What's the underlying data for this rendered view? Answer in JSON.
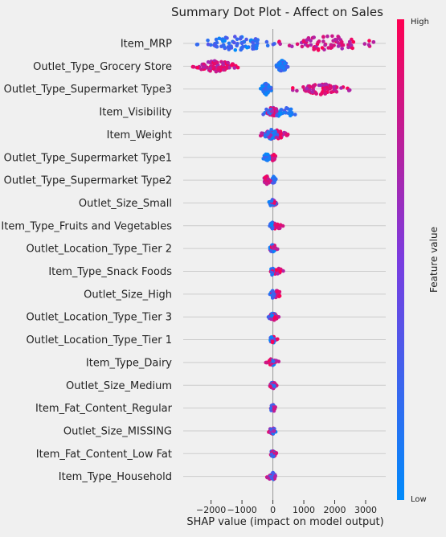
{
  "chart_data": {
    "type": "scatter",
    "subtype": "shap-summary-beeswarm",
    "title": "Summary Dot Plot - Affect on Sales",
    "xlabel": "SHAP value (impact on model output)",
    "xlim": [
      -2900,
      3650
    ],
    "xticks": [
      -2000,
      -1000,
      0,
      1000,
      2000,
      3000
    ],
    "xtick_labels": [
      "−2000",
      "−1000",
      "0",
      "1000",
      "2000",
      "3000"
    ],
    "grid": "horizontal lines per feature",
    "colorbar": {
      "label": "Feature value",
      "high": "High",
      "low": "Low",
      "placement": "right"
    },
    "colors": {
      "low": "#008bfb",
      "mid": "#7a3ce0",
      "high": "#ff0052",
      "grid": "#cccccc",
      "zero_line": "#999999",
      "background": "#f0f0f0"
    },
    "features": [
      {
        "name": "Item_MRP",
        "high_min": 200,
        "high_max": 3400,
        "low_min": -2500,
        "low_max": 100,
        "spread": 0.9
      },
      {
        "name": "Outlet_Type_Grocery Store",
        "high_min": -2600,
        "high_max": -1100,
        "low_min": 100,
        "low_max": 500,
        "spread": 0.6
      },
      {
        "name": "Outlet_Type_Supermarket Type3",
        "high_min": 600,
        "high_max": 2500,
        "low_min": -400,
        "low_max": -50,
        "spread": 0.6
      },
      {
        "name": "Item_Visibility",
        "high_min": -200,
        "high_max": 200,
        "low_min": -600,
        "low_max": 1100,
        "spread": 0.5
      },
      {
        "name": "Item_Weight",
        "high_min": -400,
        "high_max": 500,
        "low_min": -300,
        "low_max": 200,
        "spread": 0.5
      },
      {
        "name": "Outlet_Type_Supermarket Type1",
        "high_min": -80,
        "high_max": 100,
        "low_min": -350,
        "low_max": -50,
        "spread": 0.35
      },
      {
        "name": "Outlet_Type_Supermarket Type2",
        "high_min": -350,
        "high_max": -50,
        "low_min": -80,
        "low_max": 100,
        "spread": 0.35
      },
      {
        "name": "Outlet_Size_Small",
        "high_min": -100,
        "high_max": 150,
        "low_min": -150,
        "low_max": 100,
        "spread": 0.3
      },
      {
        "name": "Item_Type_Fruits and Vegetables",
        "high_min": -100,
        "high_max": 350,
        "low_min": -100,
        "low_max": 50,
        "spread": 0.3
      },
      {
        "name": "Outlet_Location_Type_Tier 2",
        "high_min": -100,
        "high_max": 150,
        "low_min": -150,
        "low_max": 100,
        "spread": 0.3
      },
      {
        "name": "Item_Type_Snack Foods",
        "high_min": -150,
        "high_max": 350,
        "low_min": -100,
        "low_max": 50,
        "spread": 0.3
      },
      {
        "name": "Outlet_Size_High",
        "high_min": -50,
        "high_max": 300,
        "low_min": -100,
        "low_max": 80,
        "spread": 0.3
      },
      {
        "name": "Outlet_Location_Type_Tier 3",
        "high_min": -150,
        "high_max": 200,
        "low_min": -150,
        "low_max": 150,
        "spread": 0.3
      },
      {
        "name": "Outlet_Location_Type_Tier 1",
        "high_min": -150,
        "high_max": 150,
        "low_min": -150,
        "low_max": 150,
        "spread": 0.3
      },
      {
        "name": "Item_Type_Dairy",
        "high_min": -300,
        "high_max": 200,
        "low_min": -100,
        "low_max": 80,
        "spread": 0.3
      },
      {
        "name": "Outlet_Size_Medium",
        "high_min": -100,
        "high_max": 150,
        "low_min": -100,
        "low_max": 100,
        "spread": 0.3
      },
      {
        "name": "Item_Fat_Content_Regular",
        "high_min": -100,
        "high_max": 120,
        "low_min": -100,
        "low_max": 80,
        "spread": 0.3
      },
      {
        "name": "Outlet_Size_MISSING",
        "high_min": -150,
        "high_max": 100,
        "low_min": -80,
        "low_max": 100,
        "spread": 0.3
      },
      {
        "name": "Item_Fat_Content_Low Fat",
        "high_min": -80,
        "high_max": 120,
        "low_min": -100,
        "low_max": 80,
        "spread": 0.3
      },
      {
        "name": "Item_Type_Household",
        "high_min": -200,
        "high_max": 150,
        "low_min": -100,
        "low_max": 100,
        "spread": 0.3
      }
    ]
  }
}
